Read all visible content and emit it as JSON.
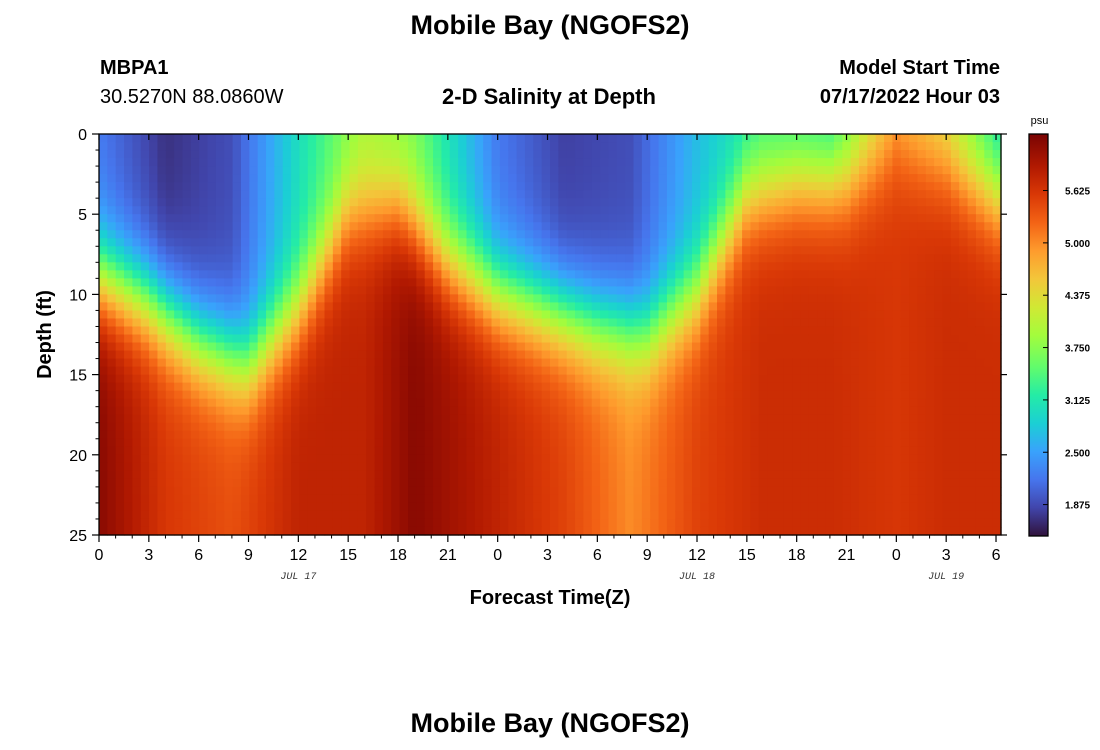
{
  "page": {
    "title": "Mobile Bay (NGOFS2)",
    "bottom_title": "Mobile Bay (NGOFS2)",
    "station_id": "MBPA1",
    "station_coords": "30.5270N  88.0860W",
    "model_label": "Model Start Time",
    "model_time": "07/17/2022 Hour 03"
  },
  "chart_data": {
    "type": "heatmap",
    "title": "2-D Salinity at Depth",
    "xlabel": "Forecast Time(Z)",
    "ylabel": "Depth (ft)",
    "x_tick_labels": [
      "0",
      "3",
      "6",
      "9",
      "12",
      "15",
      "18",
      "21",
      "0",
      "3",
      "6",
      "9",
      "12",
      "15",
      "18",
      "21",
      "0",
      "3",
      "6"
    ],
    "x_hours": [
      0,
      3,
      6,
      9,
      12,
      15,
      18,
      21,
      24,
      27,
      30,
      33,
      36,
      39,
      42,
      45,
      48,
      51,
      54
    ],
    "xlim": [
      0,
      54.3
    ],
    "date_labels": [
      {
        "text": "JUL 17",
        "hour": 12
      },
      {
        "text": "JUL 18",
        "hour": 36
      },
      {
        "text": "JUL 19",
        "hour": 51
      }
    ],
    "y_ticks": [
      0,
      5,
      10,
      15,
      20,
      25
    ],
    "ylim": [
      0,
      25
    ],
    "y_inverted": true,
    "colorbar": {
      "unit": "psu",
      "ticks": [
        "1.875",
        "2.500",
        "3.125",
        "3.750",
        "4.375",
        "5.000",
        "5.625"
      ],
      "tick_values": [
        1.875,
        2.5,
        3.125,
        3.75,
        4.375,
        5.0,
        5.625
      ],
      "range": [
        1.5,
        6.3
      ],
      "colormap": "turbo"
    },
    "interface_depth_ft": {
      "hours": [
        0,
        3,
        6,
        9,
        12,
        15,
        18,
        21,
        24,
        27,
        30,
        33,
        36,
        39,
        42,
        45,
        48,
        51,
        54
      ],
      "depth": [
        9,
        10.5,
        13,
        14.5,
        11,
        5,
        4.5,
        8,
        10,
        11,
        12,
        12.5,
        10,
        4,
        3,
        3,
        1,
        2,
        4
      ]
    },
    "salinity_profiles": [
      {
        "hour": 0,
        "surface": 2.2,
        "bottom": 6.2
      },
      {
        "hour": 4,
        "surface": 1.7,
        "bottom": 5.6
      },
      {
        "hour": 8,
        "surface": 1.9,
        "bottom": 5.4
      },
      {
        "hour": 12,
        "surface": 3.0,
        "bottom": 5.8
      },
      {
        "hour": 16,
        "surface": 3.9,
        "bottom": 5.8
      },
      {
        "hour": 19,
        "surface": 3.6,
        "bottom": 6.2
      },
      {
        "hour": 24,
        "surface": 2.2,
        "bottom": 5.8
      },
      {
        "hour": 28,
        "surface": 1.8,
        "bottom": 5.5
      },
      {
        "hour": 32,
        "surface": 1.9,
        "bottom": 5.0
      },
      {
        "hour": 36,
        "surface": 2.7,
        "bottom": 5.5
      },
      {
        "hour": 40,
        "surface": 3.2,
        "bottom": 5.7
      },
      {
        "hour": 44,
        "surface": 3.0,
        "bottom": 5.7
      },
      {
        "hour": 48,
        "surface": 4.6,
        "bottom": 5.6
      },
      {
        "hour": 51,
        "surface": 4.1,
        "bottom": 5.7
      },
      {
        "hour": 54,
        "surface": 3.0,
        "bottom": 5.7
      }
    ]
  }
}
